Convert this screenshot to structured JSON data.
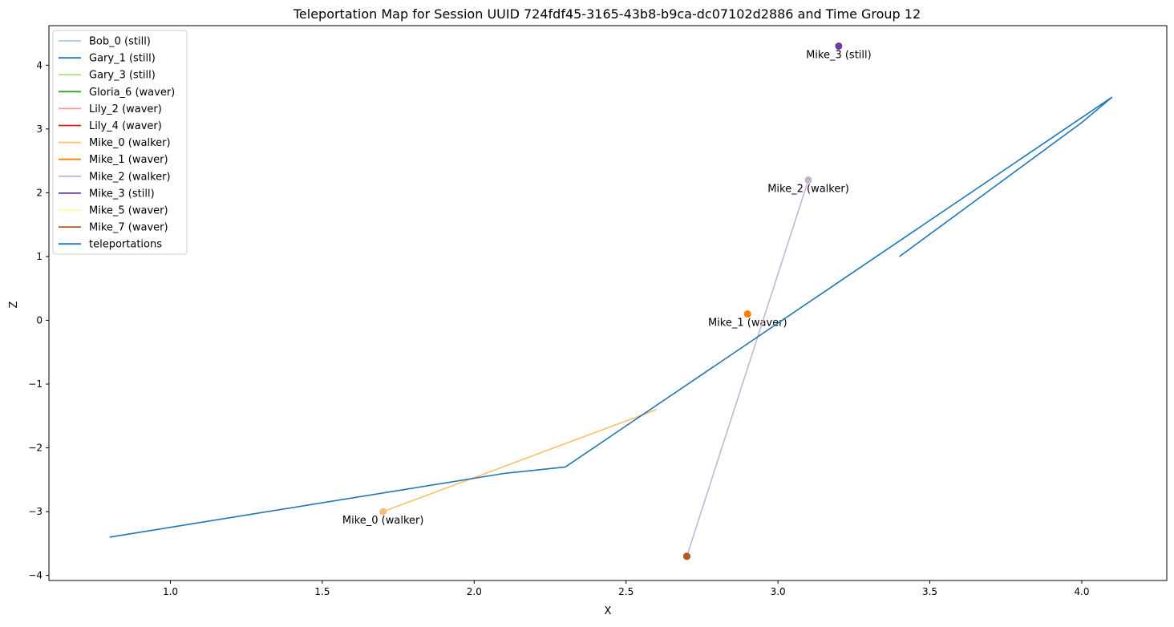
{
  "chart_data": {
    "type": "line",
    "title": "Teleportation Map for Session UUID 724fdf45-3165-43b8-b9ca-dc07102d2886 and Time Group 12",
    "xlabel": "X",
    "ylabel": "Z",
    "xlim": [
      0.6,
      4.28
    ],
    "ylim": [
      -4.08,
      4.62
    ],
    "xticks": [
      1.0,
      1.5,
      2.0,
      2.5,
      3.0,
      3.5,
      4.0
    ],
    "xtick_labels": [
      "1.0",
      "1.5",
      "2.0",
      "2.5",
      "3.0",
      "3.5",
      "4.0"
    ],
    "yticks": [
      -4,
      -3,
      -2,
      -1,
      0,
      1,
      2,
      3,
      4
    ],
    "ytick_labels": [
      "−4",
      "−3",
      "−2",
      "−1",
      "0",
      "1",
      "2",
      "3",
      "4"
    ],
    "grid": false,
    "legend_position": "top-left",
    "series": [
      {
        "name": "Bob_0 (still)",
        "color": "#a6cee3",
        "points": [
          {
            "x": 2.7,
            "z": -3.7
          }
        ],
        "show_label": false
      },
      {
        "name": "Gary_1 (still)",
        "color": "#1f78b4",
        "points": [
          {
            "x": 2.7,
            "z": -3.7
          }
        ],
        "show_label": false
      },
      {
        "name": "Gary_3 (still)",
        "color": "#b2df8a",
        "points": [
          {
            "x": 2.7,
            "z": -3.7
          }
        ],
        "show_label": false
      },
      {
        "name": "Gloria_6 (waver)",
        "color": "#33a02c",
        "points": [
          {
            "x": 2.7,
            "z": -3.7
          }
        ],
        "show_label": false
      },
      {
        "name": "Lily_2 (waver)",
        "color": "#fb9a99",
        "points": [
          {
            "x": 2.7,
            "z": -3.7
          }
        ],
        "show_label": false
      },
      {
        "name": "Lily_4 (waver)",
        "color": "#e31a1c",
        "points": [
          {
            "x": 2.7,
            "z": -3.7
          }
        ],
        "show_label": false
      },
      {
        "name": "Mike_0 (walker)",
        "color": "#fdbf6f",
        "points": [
          {
            "x": 2.6,
            "z": -1.4
          },
          {
            "x": 1.7,
            "z": -3.0
          }
        ],
        "show_label": true
      },
      {
        "name": "Mike_1 (waver)",
        "color": "#ff7f00",
        "points": [
          {
            "x": 2.9,
            "z": 0.1
          }
        ],
        "show_label": true
      },
      {
        "name": "Mike_2 (walker)",
        "color": "#cab2d6",
        "points": [
          {
            "x": 2.7,
            "z": -3.7
          },
          {
            "x": 3.1,
            "z": 2.2
          }
        ],
        "show_label": true
      },
      {
        "name": "Mike_3 (still)",
        "color": "#6a3d9a",
        "points": [
          {
            "x": 3.2,
            "z": 4.3
          }
        ],
        "show_label": true
      },
      {
        "name": "Mike_5 (waver)",
        "color": "#ffff99",
        "points": [
          {
            "x": 2.7,
            "z": -3.7
          }
        ],
        "show_label": false
      },
      {
        "name": "Mike_7 (waver)",
        "color": "#b15928",
        "points": [
          {
            "x": 2.7,
            "z": -3.7
          }
        ],
        "show_label": false
      },
      {
        "name": "teleportations",
        "color": "#1f77b4",
        "points": [
          {
            "x": 0.8,
            "z": -3.4
          },
          {
            "x": 2.1,
            "z": -2.4
          },
          {
            "x": 2.3,
            "z": -2.3
          },
          {
            "x": 4.1,
            "z": 3.5
          },
          {
            "x": 4.0,
            "z": 3.1
          },
          {
            "x": 3.4,
            "z": 1.0
          }
        ],
        "show_label": false
      }
    ]
  }
}
